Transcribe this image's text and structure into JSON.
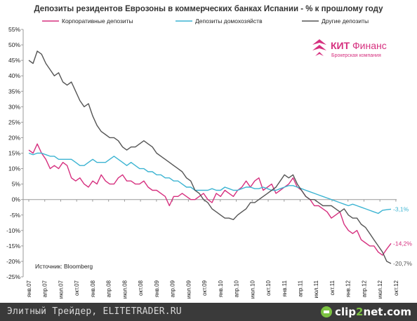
{
  "chart_data": {
    "type": "line",
    "title": "Депозиты резидентов Еврозоны  в коммерческих банках Испании - % к прошлому году",
    "xlabel": "",
    "ylabel": "",
    "ylim": [
      -25,
      55
    ],
    "yticks": [
      "55%",
      "50%",
      "45%",
      "40%",
      "35%",
      "30%",
      "25%",
      "20%",
      "15%",
      "10%",
      "5%",
      "0%",
      "-5%",
      "-10%",
      "-15%",
      "-20%",
      "-25%"
    ],
    "ytick_values": [
      55,
      50,
      45,
      40,
      35,
      30,
      25,
      20,
      15,
      10,
      5,
      0,
      -5,
      -10,
      -15,
      -20,
      -25
    ],
    "xticks": [
      "янв.07",
      "апр.07",
      "июл.07",
      "окт.07",
      "янв.08",
      "апр.08",
      "июл.08",
      "окт.08",
      "янв.09",
      "апр.09",
      "июл.09",
      "окт.09",
      "янв.10",
      "апр.10",
      "июл.10",
      "окт.10",
      "янв.11",
      "апр.11",
      "июл.11",
      "окт.11",
      "янв.12",
      "апр.12",
      "июл.12",
      "окт.12"
    ],
    "legend_position": "top",
    "grid": false,
    "source_note": "Источник: Bloomberg",
    "series": [
      {
        "name": "Корпоративные депозиты",
        "color": "#d6307f",
        "end_label": "-14,2%",
        "values": [
          16,
          15,
          18,
          15,
          13,
          10,
          11,
          10,
          12,
          11,
          7,
          6,
          7,
          5,
          4,
          6,
          5,
          8,
          6,
          5,
          5,
          7,
          8,
          6,
          6,
          5,
          5,
          6,
          4,
          3,
          3,
          2,
          1,
          -2,
          1,
          1,
          2,
          1,
          0,
          0,
          1,
          2,
          0,
          -1,
          2,
          1,
          3,
          2,
          1,
          3,
          4,
          6,
          4,
          6,
          7,
          3,
          4,
          5,
          2,
          3,
          4,
          5,
          7,
          4,
          3,
          1,
          0,
          -2,
          -2,
          -3,
          -4,
          -6,
          -5,
          -4,
          -8,
          -10,
          -11,
          -10,
          -13,
          -14,
          -15,
          -15,
          -17,
          -18,
          -16,
          -14.2
        ]
      },
      {
        "name": "Депозиты домохозяйств",
        "color": "#3cb4d2",
        "end_label": "-3,1%",
        "values": [
          15,
          14.5,
          15,
          15,
          14.5,
          14,
          14,
          13,
          13,
          13,
          13,
          12,
          11,
          11,
          12,
          13,
          12,
          12,
          12,
          13,
          14,
          13,
          12,
          11,
          12,
          11,
          10,
          10,
          9,
          9,
          8,
          8,
          7,
          7,
          6,
          6,
          5,
          4,
          4,
          3,
          3,
          3,
          3,
          3.5,
          3,
          3,
          4,
          3.5,
          3,
          3,
          3.5,
          4,
          4,
          3.5,
          3.5,
          4,
          3.5,
          3,
          3,
          3.5,
          4,
          4.5,
          4.5,
          4,
          3.5,
          3,
          2.5,
          2,
          1.5,
          1,
          0.5,
          0,
          -0.5,
          -1,
          -1.5,
          -2,
          -1.5,
          -2,
          -2.5,
          -3,
          -3.5,
          -4,
          -4.5,
          -3.5,
          -3.3,
          -3.1
        ]
      },
      {
        "name": "Другие депозиты",
        "color": "#555555",
        "end_label": "-20,7%",
        "values": [
          45,
          44,
          48,
          47,
          44,
          42,
          40,
          41,
          38,
          37,
          38,
          35,
          32,
          30,
          31,
          27,
          24,
          22,
          21,
          20,
          20,
          19,
          17,
          16,
          17,
          17,
          18,
          19,
          18,
          17,
          15,
          14,
          13,
          12,
          11,
          10,
          9,
          7,
          6,
          3,
          2,
          0,
          -1,
          -3,
          -4,
          -5,
          -6,
          -6,
          -6.5,
          -5,
          -4,
          -3,
          -1,
          -1,
          0,
          1,
          2,
          3,
          4,
          6,
          8,
          7,
          8,
          5,
          3,
          1,
          0,
          0,
          -1,
          -2,
          -2,
          -2,
          -3,
          -4,
          -3,
          -5,
          -6,
          -6,
          -8,
          -9,
          -11,
          -13,
          -15,
          -17,
          -20,
          -20.7
        ]
      }
    ]
  },
  "logo": {
    "brand_bold": "КИТ",
    "brand_regular": "Финанс",
    "tagline": "Брокерская компания",
    "color": "#d6307f"
  },
  "footer": {
    "text": "Элитный Трейдер, ELITETRADER.RU",
    "badge_prefix": "clip",
    "badge_accent": "2",
    "badge_suffix": "net.com"
  }
}
